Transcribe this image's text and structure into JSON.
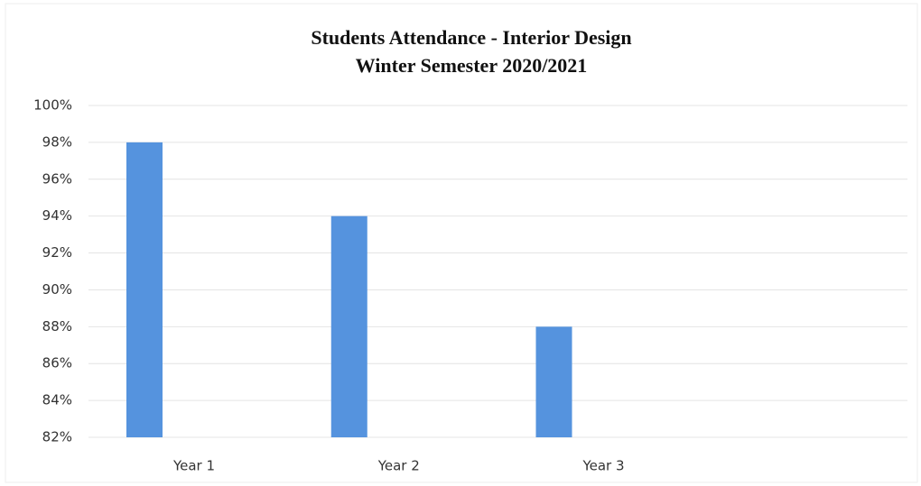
{
  "chart_data": {
    "type": "bar",
    "title": "Students Attendance - Interior Design",
    "subtitle": "Winter Semester 2020/2021",
    "categories": [
      "Year 1",
      "Year 2",
      "Year 3"
    ],
    "values": [
      98,
      94,
      88
    ],
    "color": "#5593de",
    "ylim": [
      82,
      100
    ],
    "yticks": [
      {
        "value": 82,
        "label": "82%"
      },
      {
        "value": 84,
        "label": "84%"
      },
      {
        "value": 86,
        "label": "86%"
      },
      {
        "value": 88,
        "label": "88%"
      },
      {
        "value": 90,
        "label": "90%"
      },
      {
        "value": 92,
        "label": "92%"
      },
      {
        "value": 94,
        "label": "94%"
      },
      {
        "value": 96,
        "label": "96%"
      },
      {
        "value": 98,
        "label": "98%"
      },
      {
        "value": 100,
        "label": "100%"
      }
    ],
    "grid": true
  }
}
